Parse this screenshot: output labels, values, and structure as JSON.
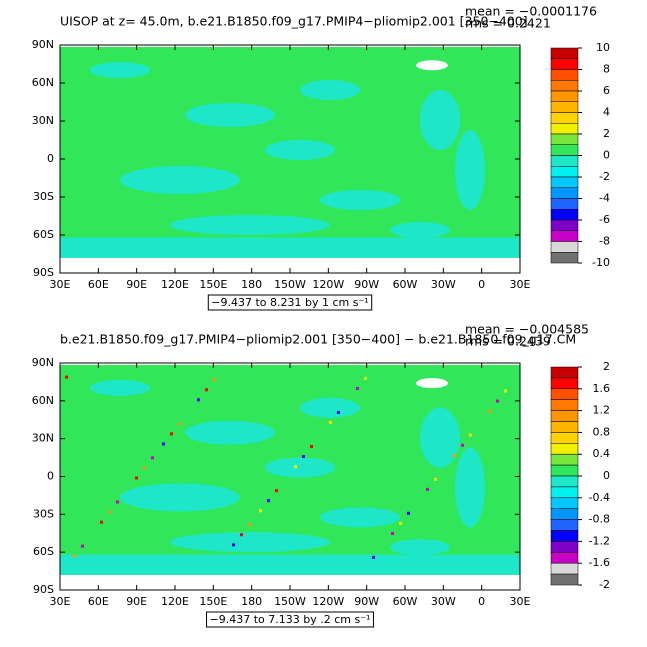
{
  "panels": [
    {
      "title": "UISOP at z=  45.0m, b.e21.B1850.f09_g17.PMIP4−pliomip2.001 [350−400]",
      "mean_label": "mean = −0.0001176",
      "rms_label": "rms =  0.2421",
      "range_label": "−9.437 to 8.231 by 1 cm s⁻¹",
      "xlim": [
        30,
        390
      ],
      "ylim": [
        -90,
        90
      ],
      "xticks": [
        {
          "value": 30,
          "label": "30E"
        },
        {
          "value": 60,
          "label": "60E"
        },
        {
          "value": 90,
          "label": "90E"
        },
        {
          "value": 120,
          "label": "120E"
        },
        {
          "value": 150,
          "label": "150E"
        },
        {
          "value": 180,
          "label": "180"
        },
        {
          "value": 210,
          "label": "150W"
        },
        {
          "value": 240,
          "label": "120W"
        },
        {
          "value": 270,
          "label": "90W"
        },
        {
          "value": 300,
          "label": "60W"
        },
        {
          "value": 330,
          "label": "30W"
        },
        {
          "value": 360,
          "label": "0"
        },
        {
          "value": 390,
          "label": "30E"
        }
      ],
      "yticks": [
        {
          "value": 90,
          "label": "90N"
        },
        {
          "value": 60,
          "label": "60N"
        },
        {
          "value": 30,
          "label": "30N"
        },
        {
          "value": 0,
          "label": "0"
        },
        {
          "value": -30,
          "label": "30S"
        },
        {
          "value": -60,
          "label": "60S"
        },
        {
          "value": -90,
          "label": "90S"
        }
      ],
      "colorbar": {
        "ticks": [
          10,
          8,
          6,
          4,
          2,
          0,
          -2,
          -4,
          -6,
          -8,
          -10
        ],
        "colors": [
          "#c80000",
          "#ff0000",
          "#ff5000",
          "#ff7800",
          "#ff9600",
          "#ffb400",
          "#ffd200",
          "#f0f000",
          "#78e63c",
          "#32e65a",
          "#1ee6c8",
          "#00f0f0",
          "#00c8ff",
          "#0096ff",
          "#1e64ff",
          "#0000ff",
          "#8000c8",
          "#c800c8",
          "#d8d8d8",
          "#707070"
        ]
      }
    },
    {
      "title": "b.e21.B1850.f09_g17.PMIP4−pliomip2.001 [350−400] − b.e21.B1850.f09_g17.CM",
      "mean_label": "mean = −0.004585",
      "rms_label": "rms =  0.2439",
      "range_label": "−9.437 to 7.133 by .2 cm s⁻¹",
      "xlim": [
        30,
        390
      ],
      "ylim": [
        -90,
        90
      ],
      "xticks": [
        {
          "value": 30,
          "label": "30E"
        },
        {
          "value": 60,
          "label": "60E"
        },
        {
          "value": 90,
          "label": "90E"
        },
        {
          "value": 120,
          "label": "120E"
        },
        {
          "value": 150,
          "label": "150E"
        },
        {
          "value": 180,
          "label": "180"
        },
        {
          "value": 210,
          "label": "150W"
        },
        {
          "value": 240,
          "label": "120W"
        },
        {
          "value": 270,
          "label": "90W"
        },
        {
          "value": 300,
          "label": "60W"
        },
        {
          "value": 330,
          "label": "30W"
        },
        {
          "value": 360,
          "label": "0"
        },
        {
          "value": 390,
          "label": "30E"
        }
      ],
      "yticks": [
        {
          "value": 90,
          "label": "90N"
        },
        {
          "value": 60,
          "label": "60N"
        },
        {
          "value": 30,
          "label": "30N"
        },
        {
          "value": 0,
          "label": "0"
        },
        {
          "value": -30,
          "label": "30S"
        },
        {
          "value": -60,
          "label": "60S"
        },
        {
          "value": -90,
          "label": "90S"
        }
      ],
      "colorbar": {
        "ticks": [
          2,
          1.6,
          1.2,
          0.8,
          0.4,
          0,
          -0.4,
          -0.8,
          -1.2,
          -1.6,
          -2
        ],
        "colors": [
          "#c80000",
          "#ff0000",
          "#ff5000",
          "#ff7800",
          "#ff9600",
          "#ffb400",
          "#ffd200",
          "#f0f000",
          "#78e63c",
          "#32e65a",
          "#1ee6c8",
          "#00f0f0",
          "#00c8ff",
          "#0096ff",
          "#1e64ff",
          "#0000ff",
          "#8000c8",
          "#c800c8",
          "#d8d8d8",
          "#707070"
        ]
      }
    }
  ]
}
